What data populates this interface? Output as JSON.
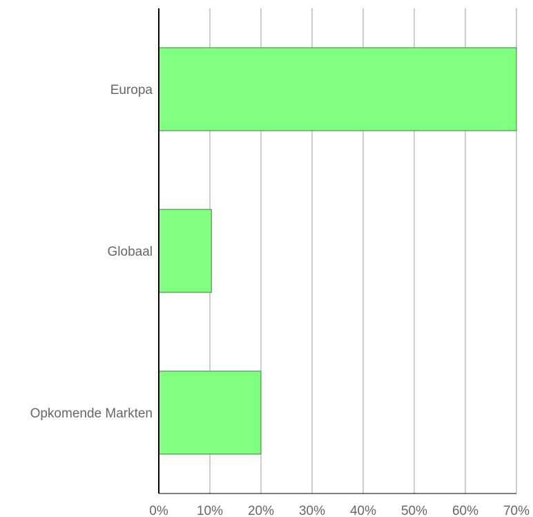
{
  "chart_data": {
    "type": "bar",
    "orientation": "horizontal",
    "categories": [
      "Europa",
      "Globaal",
      "Opkomende Markten"
    ],
    "values": [
      70,
      10.3,
      20
    ],
    "xlim": [
      0,
      70
    ],
    "x_ticks": [
      0,
      10,
      20,
      30,
      40,
      50,
      60,
      70
    ],
    "tick_labels": [
      "0%",
      "10%",
      "20%",
      "30%",
      "40%",
      "50%",
      "60%",
      "70%"
    ],
    "title": "",
    "xlabel": "",
    "ylabel": "",
    "grid": "vertical",
    "legend": "none",
    "colors": {
      "bar": "#80ff80",
      "bar_edge": "#3c7a3c",
      "grid": "#999999",
      "axis": "#000000",
      "text": "#666666"
    }
  }
}
